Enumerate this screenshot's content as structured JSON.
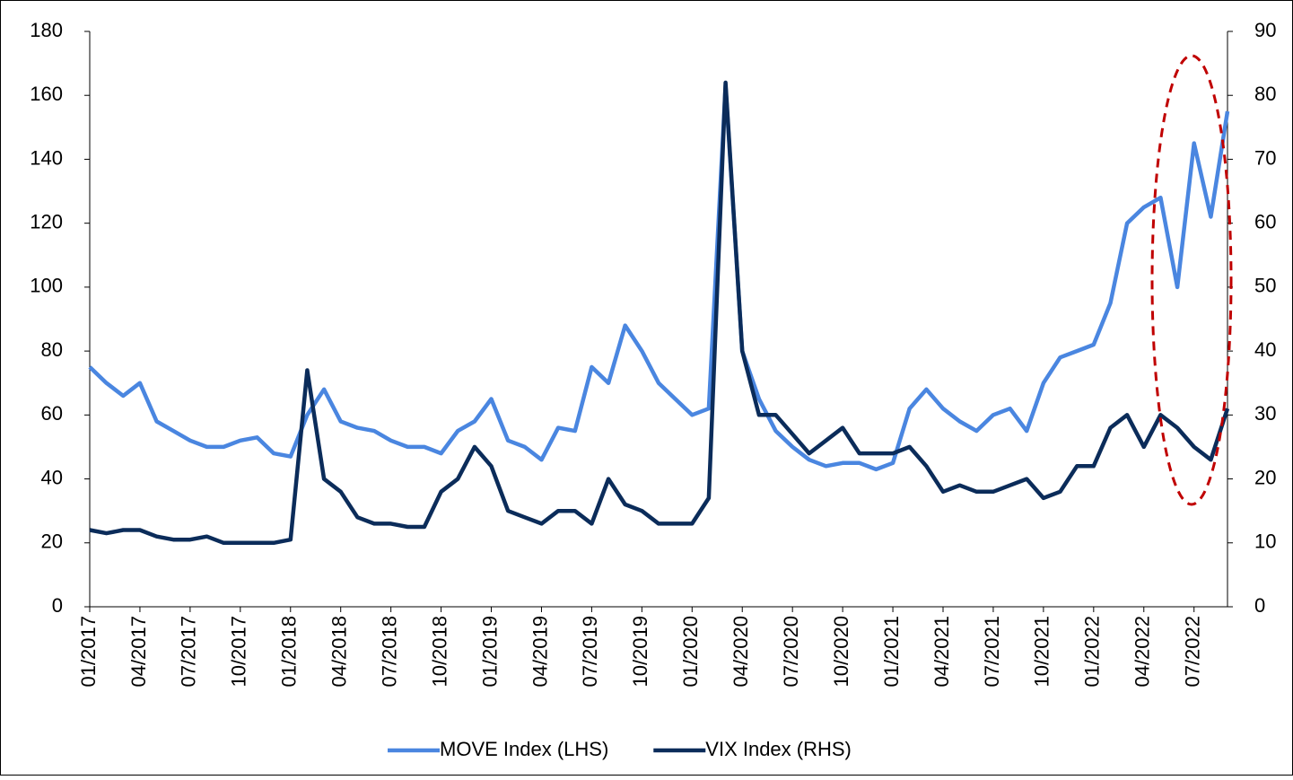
{
  "chart_data": {
    "type": "line",
    "categories": [
      "01/2017",
      null,
      null,
      "04/2017",
      null,
      null,
      "07/2017",
      null,
      null,
      "10/2017",
      null,
      null,
      "01/2018",
      null,
      null,
      "04/2018",
      null,
      null,
      "07/2018",
      null,
      null,
      "10/2018",
      null,
      null,
      "01/2019",
      null,
      null,
      "04/2019",
      null,
      null,
      "07/2019",
      null,
      null,
      "10/2019",
      null,
      null,
      "01/2020",
      null,
      null,
      "04/2020",
      null,
      null,
      "07/2020",
      null,
      null,
      "10/2020",
      null,
      null,
      "01/2021",
      null,
      null,
      "04/2021",
      null,
      null,
      "07/2021",
      null,
      null,
      "10/2021",
      null,
      null,
      "01/2022",
      null,
      null,
      "04/2022",
      null,
      null,
      "07/2022",
      null,
      null
    ],
    "series": [
      {
        "name": "MOVE Index (LHS)",
        "color": "#4a86e0",
        "axis": "y",
        "values": [
          75,
          70,
          66,
          70,
          58,
          55,
          52,
          50,
          50,
          52,
          53,
          48,
          47,
          60,
          68,
          58,
          56,
          55,
          52,
          50,
          50,
          48,
          55,
          58,
          65,
          52,
          50,
          46,
          56,
          55,
          75,
          70,
          88,
          80,
          70,
          65,
          60,
          62,
          163,
          80,
          65,
          55,
          50,
          46,
          44,
          45,
          45,
          43,
          45,
          62,
          68,
          62,
          58,
          55,
          60,
          62,
          55,
          70,
          78,
          80,
          82,
          95,
          120,
          125,
          128,
          100,
          145,
          122,
          155
        ]
      },
      {
        "name": "VIX Index (RHS)",
        "color": "#0b2c5a",
        "axis": "y2",
        "values": [
          12,
          11.5,
          12,
          12,
          11,
          10.5,
          10.5,
          11,
          10,
          10,
          10,
          10,
          10.5,
          37,
          20,
          18,
          14,
          13,
          13,
          12.5,
          12.5,
          18,
          20,
          25,
          22,
          15,
          14,
          13,
          15,
          15,
          13,
          20,
          16,
          15,
          13,
          13,
          13,
          17,
          82,
          40,
          30,
          30,
          27,
          24,
          26,
          28,
          24,
          24,
          24,
          25,
          22,
          18,
          19,
          18,
          18,
          19,
          20,
          17,
          18,
          22,
          22,
          28,
          30,
          25,
          30,
          28,
          25,
          23,
          31
        ]
      }
    ],
    "ylim": [
      0,
      180
    ],
    "yticks": [
      0,
      20,
      40,
      60,
      80,
      100,
      120,
      140,
      160,
      180
    ],
    "y2lim": [
      0,
      90
    ],
    "y2ticks": [
      0,
      10,
      20,
      30,
      40,
      50,
      60,
      70,
      80,
      90
    ],
    "legend": "bottom"
  }
}
